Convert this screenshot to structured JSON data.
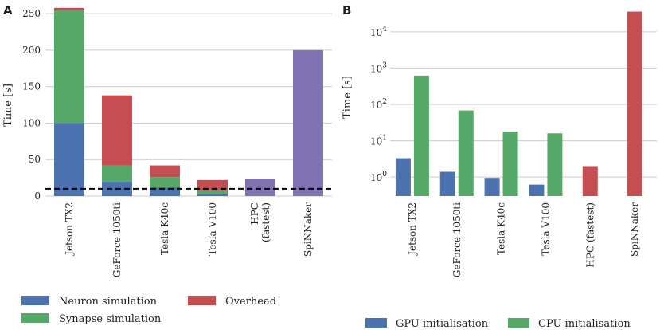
{
  "chart_data": [
    {
      "panel": "A",
      "type": "bar",
      "stacked": true,
      "title": "",
      "xlabel": "",
      "ylabel": "Time [s]",
      "ylim": [
        0,
        260
      ],
      "yticks": [
        0,
        50,
        100,
        150,
        200,
        250
      ],
      "categories": [
        "Jetson TX2",
        "GeForce 1050ti",
        "Tesla K40c",
        "Tesla V100",
        "HPC\n(fastest)",
        "SpiNNaker"
      ],
      "series": [
        {
          "name": "Neuron simulation",
          "color": "#4c72b0",
          "values": [
            100,
            20,
            12,
            3,
            0,
            0
          ]
        },
        {
          "name": "Synapse simulation",
          "color": "#55a868",
          "values": [
            155,
            22,
            14,
            5,
            0,
            0
          ]
        },
        {
          "name": "Overhead",
          "color": "#c44e52",
          "values": [
            3,
            96,
            16,
            14,
            0,
            0
          ]
        },
        {
          "name": "",
          "color": "#8172b2",
          "values": [
            0,
            0,
            0,
            0,
            24,
            200
          ]
        }
      ],
      "reference_line": {
        "y": 10,
        "style": "dashed",
        "color": "#000000"
      },
      "legend": [
        "Neuron simulation",
        "Overhead",
        "Synapse simulation"
      ],
      "grid": "horizontal"
    },
    {
      "panel": "B",
      "type": "bar",
      "log_scale": true,
      "title": "",
      "xlabel": "",
      "ylabel": "Time [s]",
      "ylim": [
        0.3,
        50000
      ],
      "yticks": [
        1,
        10,
        100,
        1000,
        10000
      ],
      "ytick_labels": [
        [
          "10",
          "0"
        ],
        [
          "10",
          "1"
        ],
        [
          "10",
          "2"
        ],
        [
          "10",
          "3"
        ],
        [
          "10",
          "4"
        ]
      ],
      "categories": [
        "Jetson TX2",
        "GeForce 1050ti",
        "Tesla K40c",
        "Tesla V100",
        "HPC (fastest)",
        "SpiNNaker"
      ],
      "series": [
        {
          "name": "GPU initialisation",
          "color": "#4c72b0",
          "values": [
            3.3,
            1.4,
            0.95,
            0.62,
            null,
            null
          ]
        },
        {
          "name": "CPU initialisation",
          "color": "#55a868",
          "values": [
            620,
            68,
            18,
            16,
            null,
            null
          ]
        },
        {
          "name": "",
          "color": "#c44e52",
          "values": [
            null,
            null,
            null,
            null,
            2.0,
            36000
          ]
        }
      ],
      "legend": [
        "GPU initialisation",
        "CPU initialisation"
      ],
      "grid": "horizontal"
    }
  ]
}
